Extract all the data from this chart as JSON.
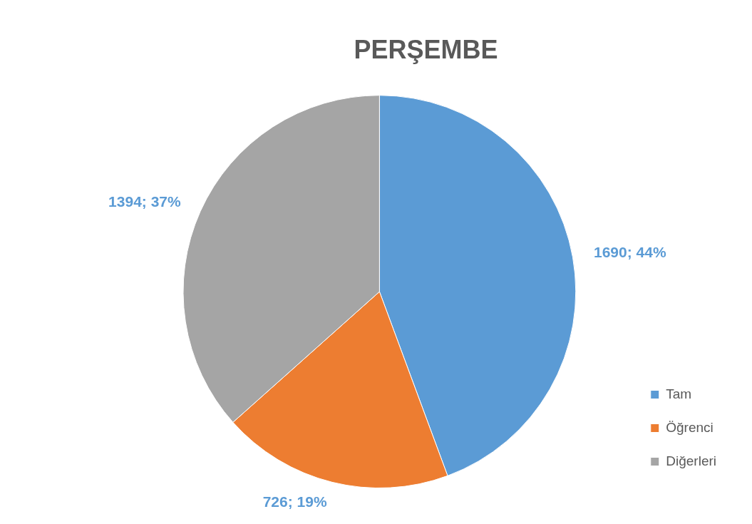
{
  "chart_data": {
    "type": "pie",
    "title": "PERŞEMBE",
    "categories": [
      "Tam",
      "Öğrenci",
      "Diğerleri"
    ],
    "values": [
      1690,
      726,
      1394
    ],
    "colors": [
      "#5b9bd5",
      "#ed7d31",
      "#a5a5a5"
    ],
    "value_labels": [
      "1690; 44%",
      "726; 19%",
      "1394; 37%"
    ],
    "legend": "bottom right"
  }
}
